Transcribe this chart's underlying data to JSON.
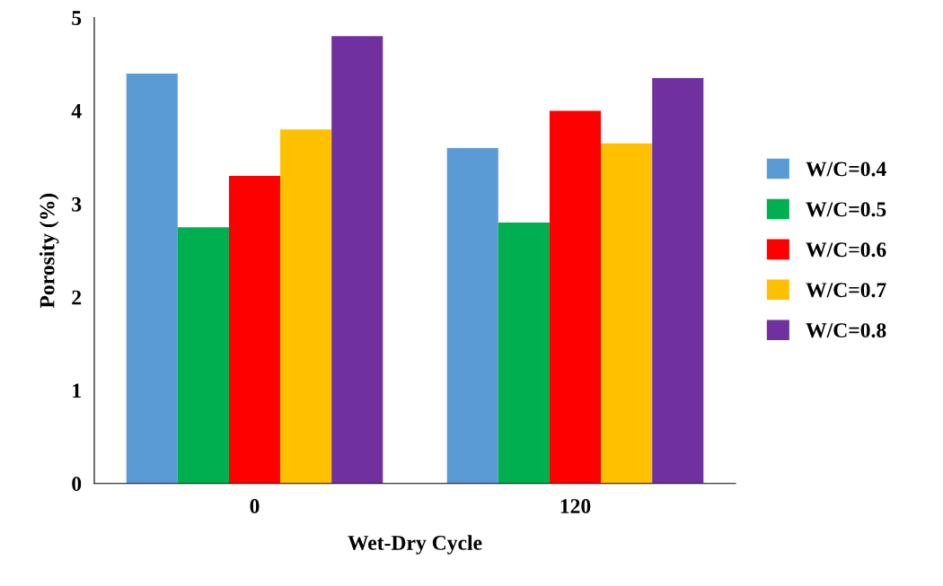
{
  "chart_data": {
    "type": "bar",
    "xlabel": "Wet-Dry Cycle",
    "ylabel": "Porosity (%)",
    "categories": [
      "0",
      "120"
    ],
    "series": [
      {
        "name": "W/C=0.4",
        "color": "#5b9bd5",
        "values": [
          4.4,
          3.6
        ]
      },
      {
        "name": "W/C=0.5",
        "color": "#00b050",
        "values": [
          2.75,
          2.8
        ]
      },
      {
        "name": "W/C=0.6",
        "color": "#ff0000",
        "values": [
          3.3,
          4.0
        ]
      },
      {
        "name": "W/C=0.7",
        "color": "#ffc000",
        "values": [
          3.8,
          3.65
        ]
      },
      {
        "name": "W/C=0.8",
        "color": "#7030a0",
        "values": [
          4.8,
          4.35
        ]
      }
    ],
    "ylim": [
      0,
      5
    ],
    "yticks": [
      0,
      1,
      2,
      3,
      4,
      5
    ],
    "grid": false,
    "legend": "right"
  }
}
